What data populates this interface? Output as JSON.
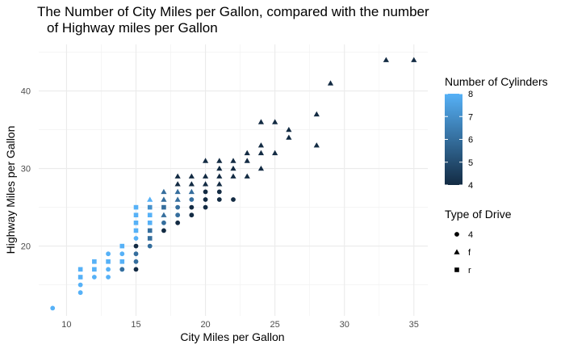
{
  "chart_data": {
    "type": "scatter",
    "title_lines": [
      "The Number of City Miles per Gallon, compared with the number",
      "of Highway miles per Gallon"
    ],
    "xlabel": "City Miles per Gallon",
    "ylabel": "Highway Miles per Gallon",
    "xlim": [
      8,
      36
    ],
    "ylim": [
      11,
      46
    ],
    "x_ticks": [
      10,
      15,
      20,
      25,
      30,
      35
    ],
    "y_ticks": [
      20,
      30,
      40
    ],
    "grid": true,
    "legend_position": "right",
    "color_legend": {
      "title": "Number of Cylinders",
      "range": [
        4,
        8
      ],
      "ticks": [
        4,
        5,
        6,
        7,
        8
      ],
      "low_color": "#132B43",
      "high_color": "#56B1F7"
    },
    "shape_legend": {
      "title": "Type of Drive",
      "items": [
        {
          "label": "4",
          "shape": "circle"
        },
        {
          "label": "f",
          "shape": "triangle"
        },
        {
          "label": "r",
          "shape": "square"
        }
      ]
    },
    "points": [
      {
        "x": 9,
        "y": 12,
        "cyl": 8,
        "drv": "4"
      },
      {
        "x": 11,
        "y": 14,
        "cyl": 8,
        "drv": "4"
      },
      {
        "x": 11,
        "y": 15,
        "cyl": 8,
        "drv": "4"
      },
      {
        "x": 11,
        "y": 16,
        "cyl": 8,
        "drv": "r"
      },
      {
        "x": 11,
        "y": 17,
        "cyl": 8,
        "drv": "r"
      },
      {
        "x": 12,
        "y": 16,
        "cyl": 8,
        "drv": "4"
      },
      {
        "x": 12,
        "y": 17,
        "cyl": 8,
        "drv": "r"
      },
      {
        "x": 12,
        "y": 18,
        "cyl": 8,
        "drv": "r"
      },
      {
        "x": 13,
        "y": 16,
        "cyl": 8,
        "drv": "4"
      },
      {
        "x": 13,
        "y": 17,
        "cyl": 8,
        "drv": "4"
      },
      {
        "x": 13,
        "y": 18,
        "cyl": 8,
        "drv": "r"
      },
      {
        "x": 13,
        "y": 19,
        "cyl": 8,
        "drv": "4"
      },
      {
        "x": 14,
        "y": 17,
        "cyl": 8,
        "drv": "4"
      },
      {
        "x": 14,
        "y": 18,
        "cyl": 8,
        "drv": "r"
      },
      {
        "x": 14,
        "y": 19,
        "cyl": 8,
        "drv": "4"
      },
      {
        "x": 14,
        "y": 20,
        "cyl": 8,
        "drv": "r"
      },
      {
        "x": 14,
        "y": 17,
        "cyl": 6,
        "drv": "4"
      },
      {
        "x": 15,
        "y": 17,
        "cyl": 4,
        "drv": "4"
      },
      {
        "x": 15,
        "y": 18,
        "cyl": 6,
        "drv": "4"
      },
      {
        "x": 15,
        "y": 19,
        "cyl": 6,
        "drv": "4"
      },
      {
        "x": 15,
        "y": 20,
        "cyl": 4,
        "drv": "4"
      },
      {
        "x": 15,
        "y": 21,
        "cyl": 8,
        "drv": "4"
      },
      {
        "x": 15,
        "y": 22,
        "cyl": 8,
        "drv": "r"
      },
      {
        "x": 15,
        "y": 23,
        "cyl": 8,
        "drv": "r"
      },
      {
        "x": 15,
        "y": 24,
        "cyl": 8,
        "drv": "r"
      },
      {
        "x": 15,
        "y": 25,
        "cyl": 8,
        "drv": "r"
      },
      {
        "x": 16,
        "y": 20,
        "cyl": 6,
        "drv": "4"
      },
      {
        "x": 16,
        "y": 21,
        "cyl": 6,
        "drv": "r"
      },
      {
        "x": 16,
        "y": 22,
        "cyl": 6,
        "drv": "r"
      },
      {
        "x": 16,
        "y": 23,
        "cyl": 8,
        "drv": "r"
      },
      {
        "x": 16,
        "y": 24,
        "cyl": 8,
        "drv": "r"
      },
      {
        "x": 16,
        "y": 25,
        "cyl": 7,
        "drv": "r"
      },
      {
        "x": 16,
        "y": 26,
        "cyl": 8,
        "drv": "f"
      },
      {
        "x": 17,
        "y": 22,
        "cyl": 4,
        "drv": "4"
      },
      {
        "x": 17,
        "y": 23,
        "cyl": 6,
        "drv": "4"
      },
      {
        "x": 17,
        "y": 24,
        "cyl": 6,
        "drv": "f"
      },
      {
        "x": 17,
        "y": 25,
        "cyl": 6,
        "drv": "r"
      },
      {
        "x": 17,
        "y": 26,
        "cyl": 6,
        "drv": "f"
      },
      {
        "x": 17,
        "y": 27,
        "cyl": 6,
        "drv": "f"
      },
      {
        "x": 18,
        "y": 23,
        "cyl": 4,
        "drv": "4"
      },
      {
        "x": 18,
        "y": 24,
        "cyl": 6,
        "drv": "4"
      },
      {
        "x": 18,
        "y": 25,
        "cyl": 6,
        "drv": "4"
      },
      {
        "x": 18,
        "y": 26,
        "cyl": 6,
        "drv": "f"
      },
      {
        "x": 18,
        "y": 27,
        "cyl": 6,
        "drv": "f"
      },
      {
        "x": 18,
        "y": 28,
        "cyl": 4,
        "drv": "f"
      },
      {
        "x": 18,
        "y": 29,
        "cyl": 4,
        "drv": "f"
      },
      {
        "x": 19,
        "y": 24,
        "cyl": 4,
        "drv": "4"
      },
      {
        "x": 19,
        "y": 25,
        "cyl": 4,
        "drv": "4"
      },
      {
        "x": 19,
        "y": 26,
        "cyl": 6,
        "drv": "4"
      },
      {
        "x": 19,
        "y": 27,
        "cyl": 6,
        "drv": "f"
      },
      {
        "x": 19,
        "y": 28,
        "cyl": 4,
        "drv": "f"
      },
      {
        "x": 19,
        "y": 29,
        "cyl": 4,
        "drv": "f"
      },
      {
        "x": 20,
        "y": 25,
        "cyl": 4,
        "drv": "4"
      },
      {
        "x": 20,
        "y": 26,
        "cyl": 4,
        "drv": "4"
      },
      {
        "x": 20,
        "y": 27,
        "cyl": 4,
        "drv": "4"
      },
      {
        "x": 20,
        "y": 28,
        "cyl": 4,
        "drv": "f"
      },
      {
        "x": 20,
        "y": 29,
        "cyl": 4,
        "drv": "f"
      },
      {
        "x": 20,
        "y": 31,
        "cyl": 4,
        "drv": "f"
      },
      {
        "x": 21,
        "y": 26,
        "cyl": 4,
        "drv": "4"
      },
      {
        "x": 21,
        "y": 27,
        "cyl": 4,
        "drv": "4"
      },
      {
        "x": 21,
        "y": 28,
        "cyl": 4,
        "drv": "f"
      },
      {
        "x": 21,
        "y": 29,
        "cyl": 4,
        "drv": "f"
      },
      {
        "x": 21,
        "y": 30,
        "cyl": 4,
        "drv": "f"
      },
      {
        "x": 21,
        "y": 31,
        "cyl": 4,
        "drv": "f"
      },
      {
        "x": 22,
        "y": 26,
        "cyl": 4,
        "drv": "4"
      },
      {
        "x": 22,
        "y": 29,
        "cyl": 4,
        "drv": "f"
      },
      {
        "x": 22,
        "y": 30,
        "cyl": 4,
        "drv": "f"
      },
      {
        "x": 22,
        "y": 31,
        "cyl": 4,
        "drv": "f"
      },
      {
        "x": 23,
        "y": 29,
        "cyl": 4,
        "drv": "f"
      },
      {
        "x": 23,
        "y": 31,
        "cyl": 4,
        "drv": "f"
      },
      {
        "x": 23,
        "y": 32,
        "cyl": 4,
        "drv": "f"
      },
      {
        "x": 24,
        "y": 30,
        "cyl": 4,
        "drv": "f"
      },
      {
        "x": 24,
        "y": 32,
        "cyl": 4,
        "drv": "f"
      },
      {
        "x": 24,
        "y": 33,
        "cyl": 4,
        "drv": "f"
      },
      {
        "x": 24,
        "y": 36,
        "cyl": 4,
        "drv": "f"
      },
      {
        "x": 25,
        "y": 32,
        "cyl": 4,
        "drv": "f"
      },
      {
        "x": 25,
        "y": 36,
        "cyl": 4,
        "drv": "f"
      },
      {
        "x": 26,
        "y": 34,
        "cyl": 4,
        "drv": "f"
      },
      {
        "x": 26,
        "y": 35,
        "cyl": 4,
        "drv": "f"
      },
      {
        "x": 28,
        "y": 33,
        "cyl": 4,
        "drv": "f"
      },
      {
        "x": 28,
        "y": 37,
        "cyl": 4,
        "drv": "f"
      },
      {
        "x": 29,
        "y": 41,
        "cyl": 4,
        "drv": "f"
      },
      {
        "x": 33,
        "y": 44,
        "cyl": 4,
        "drv": "f"
      },
      {
        "x": 35,
        "y": 44,
        "cyl": 4,
        "drv": "f"
      }
    ]
  }
}
